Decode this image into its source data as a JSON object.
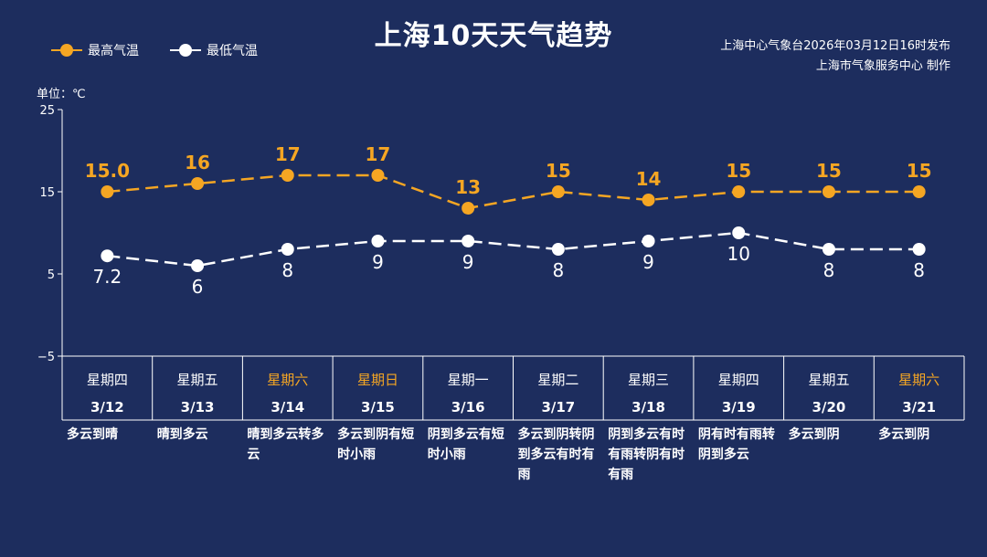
{
  "header": {
    "title": "上海10天天气趋势",
    "source_line1": "上海中心气象台2026年03月12日16时发布",
    "source_line2": "上海市气象服务中心 制作",
    "unit": "单位：℃"
  },
  "colors": {
    "background": "#1d2d5e",
    "high": "#f5a623",
    "low": "#ffffff",
    "weekend": "#f5a623"
  },
  "chart_data": {
    "type": "line",
    "ylim": [
      -5,
      25
    ],
    "yticks": [
      "25",
      "15",
      "5",
      "−5"
    ],
    "grid": false,
    "legend_position": "top-left",
    "categories": [
      "3/12",
      "3/13",
      "3/14",
      "3/15",
      "3/16",
      "3/17",
      "3/18",
      "3/19",
      "3/20",
      "3/21"
    ],
    "weekdays": [
      "星期四",
      "星期五",
      "星期六",
      "星期日",
      "星期一",
      "星期二",
      "星期三",
      "星期四",
      "星期五",
      "星期六"
    ],
    "weekend": [
      false,
      false,
      true,
      true,
      false,
      false,
      false,
      false,
      false,
      true
    ],
    "weather": [
      "多云到晴",
      "晴到多云",
      "晴到多云转多云",
      "多云到阴有短时小雨",
      "阴到多云有短时小雨",
      "多云到阴转阴到多云有时有雨",
      "阴到多云有时有雨转阴有时有雨",
      "阴有时有雨转阴到多云",
      "多云到阴",
      "多云到阴"
    ],
    "series": [
      {
        "name": "最高气温",
        "values": [
          15.0,
          16,
          17,
          17,
          13,
          15,
          14,
          15,
          15,
          15
        ],
        "labels": [
          "15.0",
          "16",
          "17",
          "17",
          "13",
          "15",
          "14",
          "15",
          "15",
          "15"
        ]
      },
      {
        "name": "最低气温",
        "values": [
          7.2,
          6,
          8,
          9,
          9,
          8,
          9,
          10,
          8,
          8
        ],
        "labels": [
          "7.2",
          "6",
          "8",
          "9",
          "9",
          "8",
          "9",
          "10",
          "8",
          "8"
        ]
      }
    ]
  }
}
